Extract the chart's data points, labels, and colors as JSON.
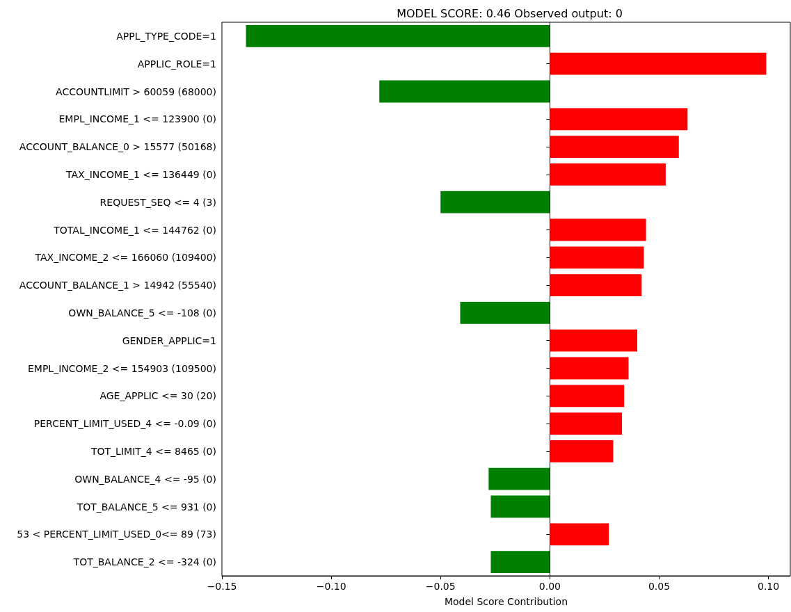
{
  "chart_data": {
    "type": "bar",
    "orientation": "horizontal",
    "title": "MODEL SCORE: 0.46 Observed output: 0",
    "xlabel": "Model Score Contribution",
    "categories": [
      "APPL_TYPE_CODE=1",
      "APPLIC_ROLE=1",
      "ACCOUNTLIMIT > 60059 (68000)",
      "EMPL_INCOME_1 <= 123900 (0)",
      "ACCOUNT_BALANCE_0 > 15577 (50168)",
      "TAX_INCOME_1 <= 136449 (0)",
      "REQUEST_SEQ <= 4 (3)",
      "TOTAL_INCOME_1 <= 144762 (0)",
      "TAX_INCOME_2 <= 166060 (109400)",
      "ACCOUNT_BALANCE_1 > 14942 (55540)",
      "OWN_BALANCE_5 <= -108 (0)",
      "GENDER_APPLIC=1",
      "EMPL_INCOME_2 <= 154903 (109500)",
      "AGE_APPLIC <= 30 (20)",
      "PERCENT_LIMIT_USED_4 <= -0.09 (0)",
      "TOT_LIMIT_4 <= 8465 (0)",
      "OWN_BALANCE_4 <= -95 (0)",
      "TOT_BALANCE_5 <= 931 (0)",
      "53 < PERCENT_LIMIT_USED_0<= 89 (73)",
      "TOT_BALANCE_2 <= -324 (0)"
    ],
    "values": [
      -0.139,
      0.099,
      -0.078,
      0.063,
      0.059,
      0.053,
      -0.05,
      0.044,
      0.043,
      0.042,
      -0.041,
      0.04,
      0.036,
      0.034,
      0.033,
      0.029,
      -0.028,
      -0.027,
      0.027,
      -0.027
    ],
    "colors": [
      "#008000",
      "#ff0000",
      "#008000",
      "#ff0000",
      "#ff0000",
      "#ff0000",
      "#008000",
      "#ff0000",
      "#ff0000",
      "#ff0000",
      "#008000",
      "#ff0000",
      "#ff0000",
      "#ff0000",
      "#ff0000",
      "#ff0000",
      "#008000",
      "#008000",
      "#ff0000",
      "#008000"
    ],
    "xlim": [
      -0.15,
      0.11
    ],
    "xticks": [
      {
        "value": -0.15,
        "label": "−0.15"
      },
      {
        "value": -0.1,
        "label": "−0.10"
      },
      {
        "value": -0.05,
        "label": "−0.05"
      },
      {
        "value": 0,
        "label": "0.00"
      },
      {
        "value": 0.05,
        "label": "0.05"
      },
      {
        "value": 0.1,
        "label": "0.10"
      }
    ]
  }
}
